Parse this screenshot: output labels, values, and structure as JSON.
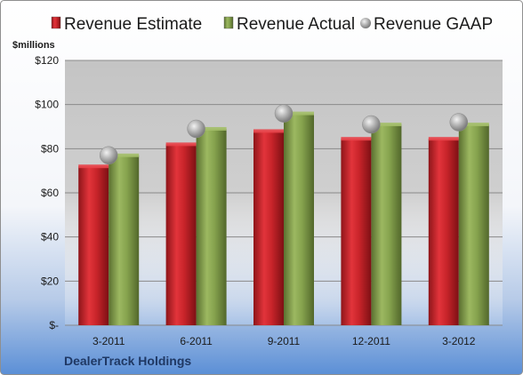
{
  "chart_data": {
    "type": "bar",
    "company": "DealerTrack Holdings",
    "ylabel": "$millions",
    "categories": [
      "3-2011",
      "6-2011",
      "9-2011",
      "12-2011",
      "3-2012"
    ],
    "series": [
      {
        "name": "Revenue Estimate",
        "kind": "bar",
        "color": "#c0272d",
        "values": [
          72,
          82,
          88,
          84.5,
          84.5
        ]
      },
      {
        "name": "Revenue Actual",
        "kind": "bar",
        "color": "#7f9a48",
        "values": [
          77,
          89,
          96,
          91,
          91
        ]
      },
      {
        "name": "Revenue GAAP",
        "kind": "marker",
        "color": "#a6a6a6",
        "values": [
          77,
          89,
          96,
          91,
          92
        ]
      }
    ],
    "ylim": [
      0,
      120
    ],
    "yticks": [
      {
        "value": 0,
        "label": "$-"
      },
      {
        "value": 20,
        "label": "$20"
      },
      {
        "value": 40,
        "label": "$40"
      },
      {
        "value": 60,
        "label": "$60"
      },
      {
        "value": 80,
        "label": "$80"
      },
      {
        "value": 100,
        "label": "$100"
      },
      {
        "value": 120,
        "label": "$120"
      }
    ],
    "grid": true,
    "legend_position": "top"
  }
}
